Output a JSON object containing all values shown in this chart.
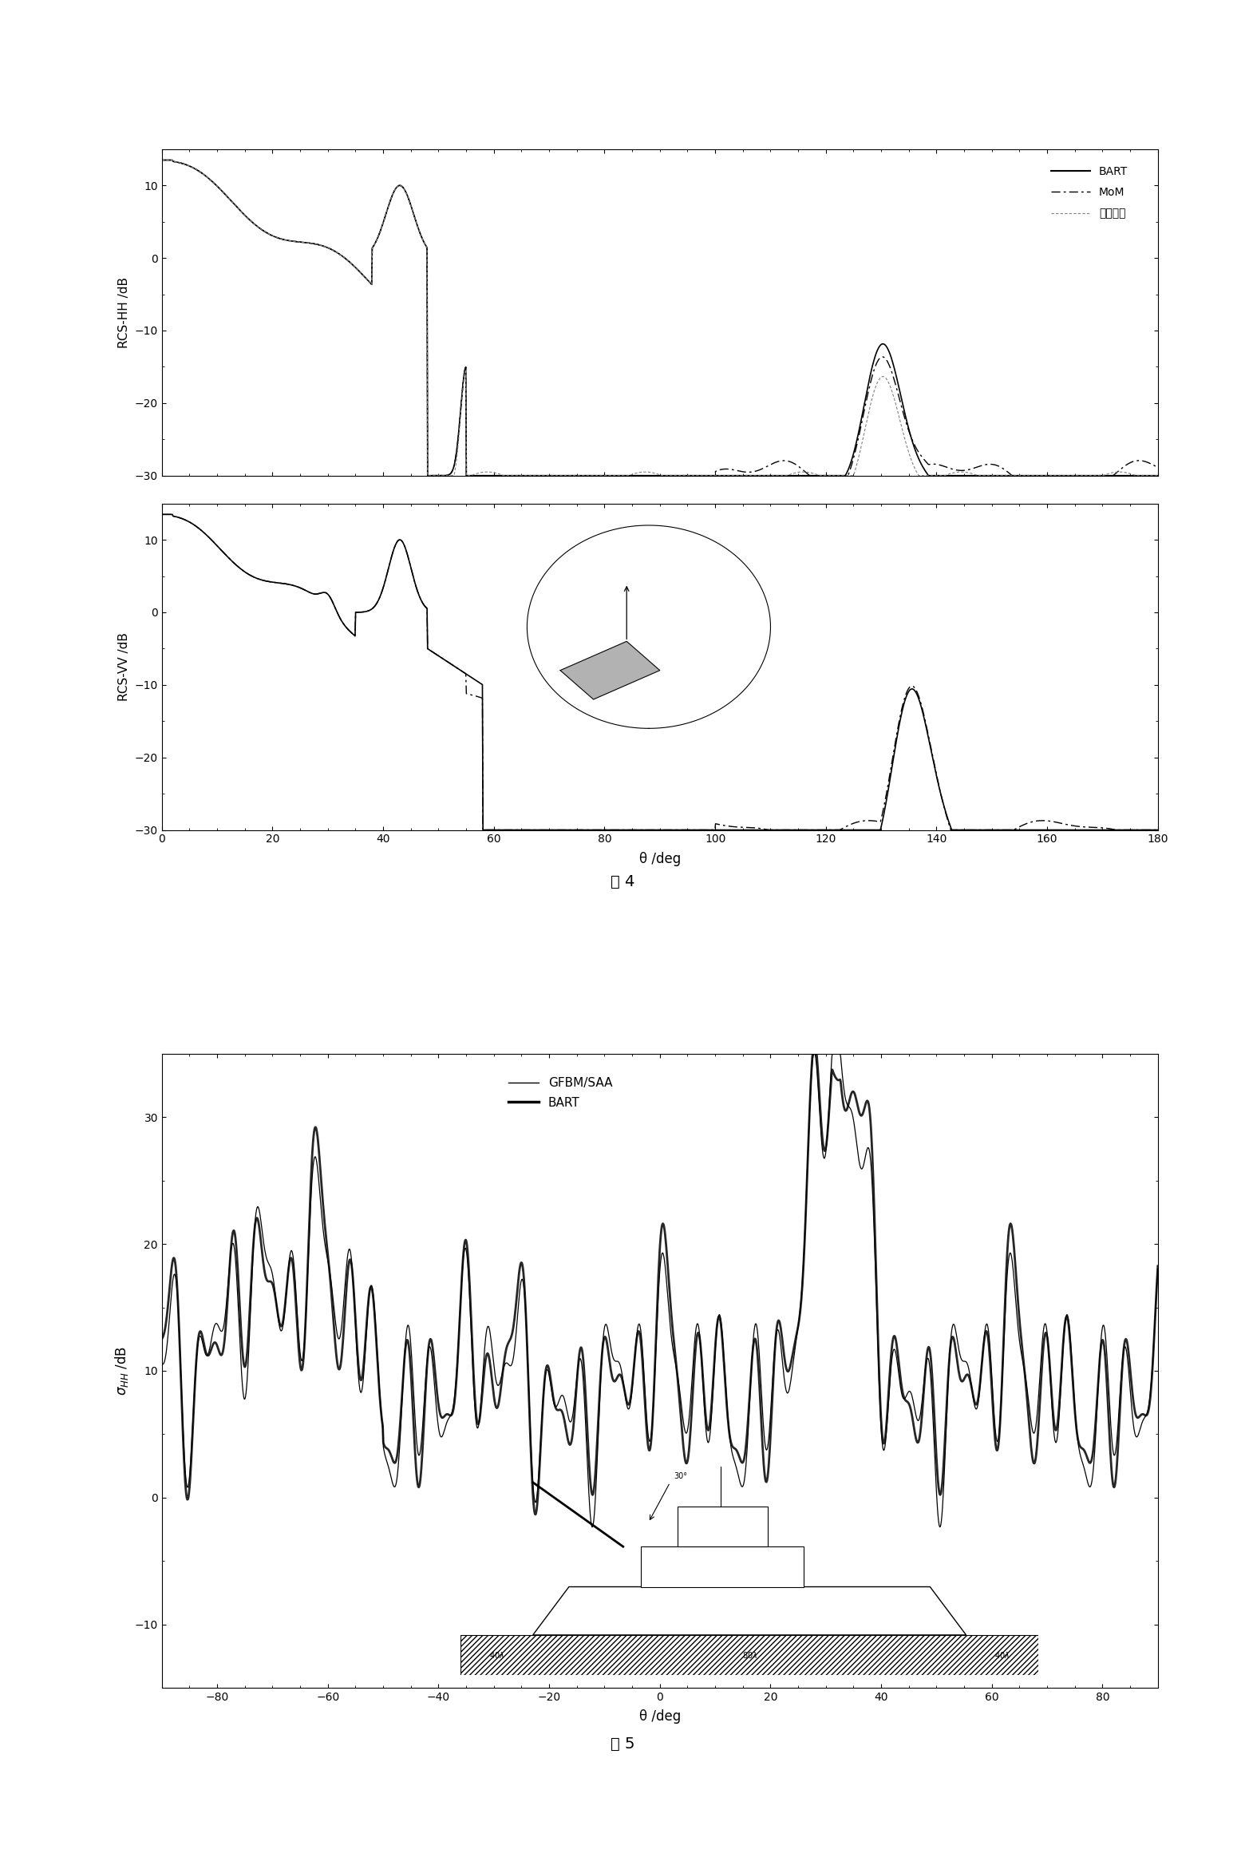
{
  "fig4_title": "图 4",
  "fig5_title": "图 5",
  "fig4_xlabel": "θ /deg",
  "fig5_xlabel": "θ /deg",
  "fig4_hh_ylabel": "RCS-HH /dB",
  "fig4_vv_ylabel": "RCS-VV /dB",
  "fig5_ylabel": "σ_HH /dB",
  "fig4_xlim": [
    0,
    180
  ],
  "fig4_ylim": [
    -30,
    15
  ],
  "fig5_xlim": [
    -90,
    90
  ],
  "fig5_ylim": [
    -15,
    35
  ],
  "legend1_labels": [
    "BART",
    "MoM",
    "实测数据"
  ],
  "background_color": "#ffffff",
  "line_color": "#000000"
}
